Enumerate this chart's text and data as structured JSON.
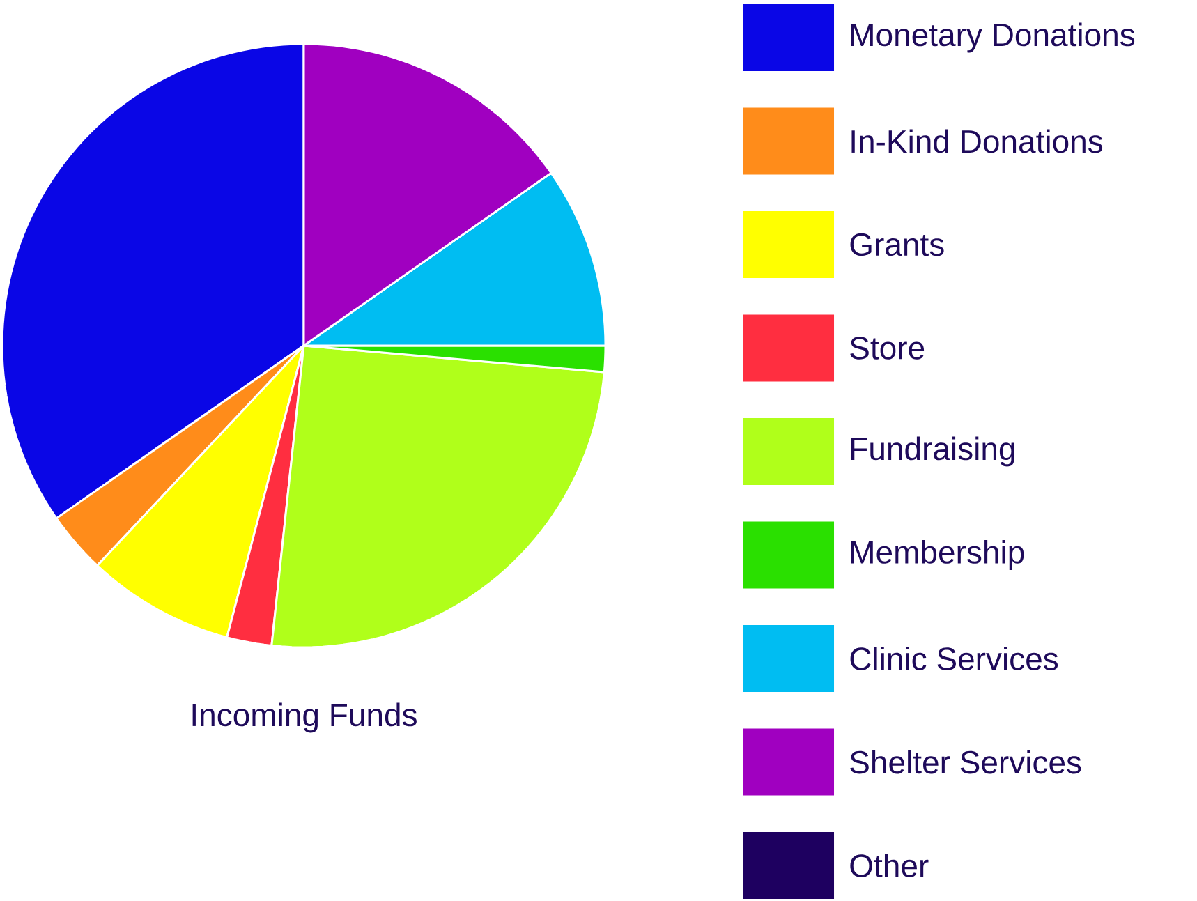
{
  "chart_data": {
    "type": "pie",
    "title": "Incoming Funds",
    "legend": "right",
    "categories": [
      "Monetary Donations",
      "In-Kind Donations",
      "Grants",
      "Store",
      "Fundraising",
      "Membership",
      "Clinic Services",
      "Shelter Services",
      "Other"
    ],
    "values": [
      34.7,
      3.3,
      7.9,
      2.4,
      25.3,
      1.4,
      9.7,
      15.3,
      0
    ],
    "colors": [
      "#0a06e6",
      "#ff8c1a",
      "#ffff00",
      "#ff2e40",
      "#b0ff1a",
      "#2ae000",
      "#00bdf2",
      "#a000c0",
      "#1e0060"
    ]
  }
}
